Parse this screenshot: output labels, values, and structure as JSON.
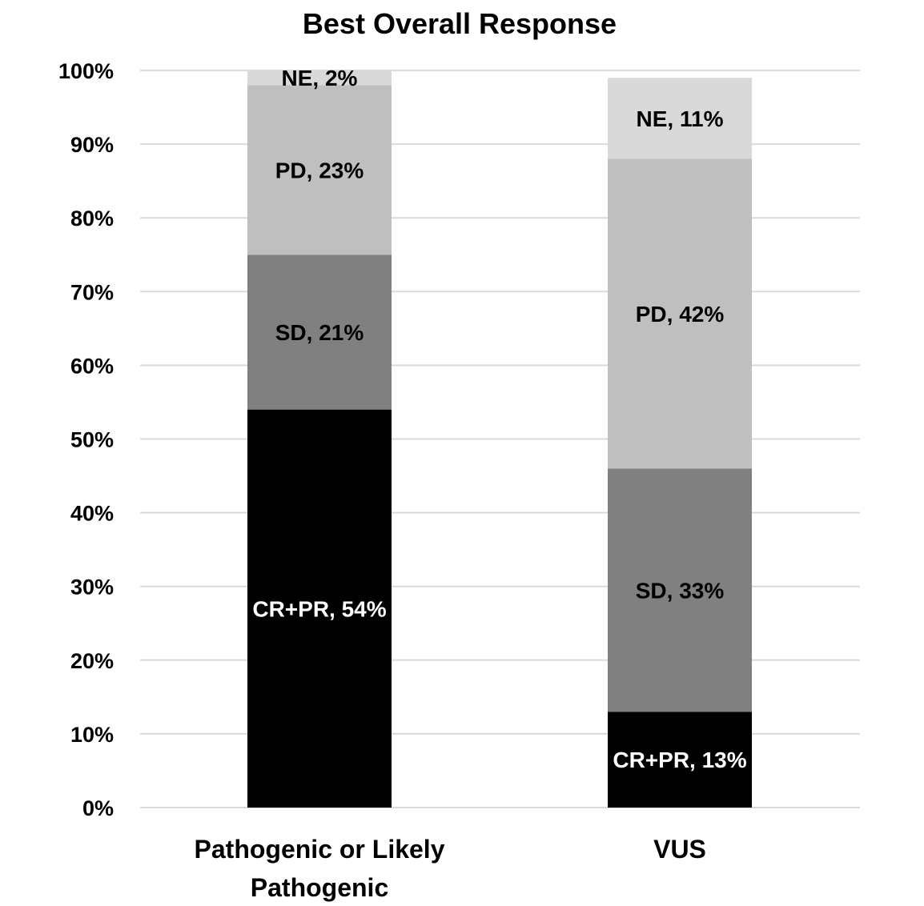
{
  "chart_data": {
    "type": "bar",
    "stacked": true,
    "title": "Best Overall Response",
    "categories": [
      "Pathogenic or Likely Pathogenic",
      "VUS"
    ],
    "category_lines": [
      [
        "Pathogenic or Likely",
        "Pathogenic"
      ],
      [
        "VUS"
      ]
    ],
    "series": [
      {
        "name": "CR+PR",
        "values": [
          54,
          13
        ],
        "color": "#000000",
        "label_color": "#ffffff"
      },
      {
        "name": "SD",
        "values": [
          21,
          33
        ],
        "color": "#808080",
        "label_color": "#000000"
      },
      {
        "name": "PD",
        "values": [
          23,
          42
        ],
        "color": "#bfbfbf",
        "label_color": "#000000"
      },
      {
        "name": "NE",
        "values": [
          2,
          11
        ],
        "color": "#d9d9d9",
        "label_color": "#000000"
      }
    ],
    "data_labels": [
      [
        "CR+PR, 54%",
        "CR+PR, 13%"
      ],
      [
        "SD, 21%",
        "SD, 33%"
      ],
      [
        "PD, 23%",
        "PD, 42%"
      ],
      [
        "NE, 2%",
        "NE, 11%"
      ]
    ],
    "ylim": [
      0,
      100
    ],
    "yticks": [
      "0%",
      "10%",
      "20%",
      "30%",
      "40%",
      "50%",
      "60%",
      "70%",
      "80%",
      "90%",
      "100%"
    ],
    "grid": true,
    "xlabel": "",
    "ylabel": ""
  }
}
